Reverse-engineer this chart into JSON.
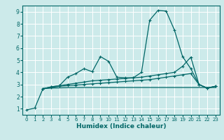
{
  "title": "",
  "xlabel": "Humidex (Indice chaleur)",
  "xlim": [
    -0.5,
    23.5
  ],
  "ylim": [
    0.5,
    9.5
  ],
  "xticks": [
    0,
    1,
    2,
    3,
    4,
    5,
    6,
    7,
    8,
    9,
    10,
    11,
    12,
    13,
    14,
    15,
    16,
    17,
    18,
    19,
    20,
    21,
    22,
    23
  ],
  "yticks": [
    1,
    2,
    3,
    4,
    5,
    6,
    7,
    8,
    9
  ],
  "bg_color": "#cceaea",
  "line_color": "#006666",
  "grid_color": "#ffffff",
  "series1_x": [
    0,
    1,
    2,
    3,
    4,
    5,
    6,
    7,
    8,
    9,
    10,
    11,
    12,
    13,
    14,
    15,
    16,
    17,
    18,
    19,
    20,
    21,
    22,
    23
  ],
  "series1_y": [
    0.9,
    1.05,
    2.65,
    2.8,
    2.9,
    3.6,
    3.9,
    4.3,
    4.05,
    5.3,
    4.9,
    3.6,
    3.55,
    3.55,
    4.0,
    8.3,
    9.1,
    9.05,
    7.5,
    5.3,
    4.3,
    3.0,
    2.7,
    2.85
  ],
  "series2_x": [
    2,
    3,
    4,
    5,
    6,
    7,
    8,
    9,
    10,
    11,
    12,
    13,
    14,
    15,
    16,
    17,
    18,
    19,
    20,
    21,
    22,
    23
  ],
  "series2_y": [
    2.65,
    2.8,
    2.9,
    3.0,
    3.1,
    3.2,
    3.3,
    3.35,
    3.4,
    3.45,
    3.5,
    3.55,
    3.6,
    3.7,
    3.8,
    3.9,
    4.0,
    4.5,
    5.25,
    3.0,
    2.7,
    2.85
  ],
  "series3_x": [
    2,
    3,
    4,
    5,
    6,
    7,
    8,
    9,
    10,
    11,
    12,
    13,
    14,
    15,
    16,
    17,
    18,
    19,
    20,
    21,
    22,
    23
  ],
  "series3_y": [
    2.65,
    2.75,
    2.85,
    2.9,
    2.95,
    3.0,
    3.05,
    3.1,
    3.15,
    3.2,
    3.25,
    3.3,
    3.35,
    3.4,
    3.5,
    3.6,
    3.7,
    3.8,
    3.9,
    3.0,
    2.7,
    2.85
  ],
  "series4_x": [
    2,
    3,
    4,
    5,
    6,
    7,
    8,
    9,
    10,
    11,
    12,
    13,
    14,
    15,
    16,
    17,
    18,
    19,
    20,
    21,
    22,
    23
  ],
  "series4_y": [
    2.65,
    2.7,
    2.72,
    2.74,
    2.75,
    2.75,
    2.75,
    2.75,
    2.75,
    2.75,
    2.75,
    2.75,
    2.75,
    2.75,
    2.75,
    2.75,
    2.75,
    2.75,
    2.75,
    2.75,
    2.75,
    2.75
  ]
}
